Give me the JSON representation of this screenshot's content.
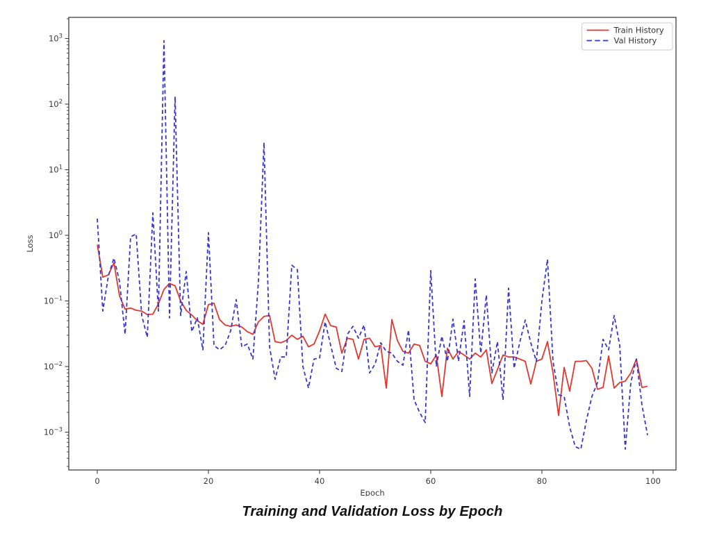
{
  "page": {
    "background": "#ffffff",
    "caption": "Training and Validation Loss by Epoch"
  },
  "chart_data": {
    "type": "line",
    "title": "",
    "xlabel": "Epoch",
    "ylabel": "Loss",
    "x_scale": "linear",
    "y_scale": "log",
    "grid": false,
    "xlim": [
      -5,
      104
    ],
    "ylim": [
      0.00027,
      2000
    ],
    "x_ticks": [
      0,
      20,
      40,
      60,
      80,
      100
    ],
    "y_tick_exponents": [
      3,
      2,
      1,
      0,
      -1,
      -2,
      -3
    ],
    "legend": {
      "position": "upper right",
      "entries": [
        "Train History",
        "Val History"
      ]
    },
    "axis_color": "#3c3c3c",
    "tick_label_color": "#3a3a3a",
    "x": [
      0,
      1,
      2,
      3,
      4,
      5,
      6,
      7,
      8,
      9,
      10,
      11,
      12,
      13,
      14,
      15,
      16,
      17,
      18,
      19,
      20,
      21,
      22,
      23,
      24,
      25,
      26,
      27,
      28,
      29,
      30,
      31,
      32,
      33,
      34,
      35,
      36,
      37,
      38,
      39,
      40,
      41,
      42,
      43,
      44,
      45,
      46,
      47,
      48,
      49,
      50,
      51,
      52,
      53,
      54,
      55,
      56,
      57,
      58,
      59,
      60,
      61,
      62,
      63,
      64,
      65,
      66,
      67,
      68,
      69,
      70,
      71,
      72,
      73,
      74,
      75,
      76,
      77,
      78,
      79,
      80,
      81,
      82,
      83,
      84,
      85,
      86,
      87,
      88,
      89,
      90,
      91,
      92,
      93,
      94,
      95,
      96,
      97,
      98,
      99
    ],
    "series": [
      {
        "name": "Train History",
        "color": "#e8332b",
        "style": "solid",
        "values": [
          0.72,
          0.23,
          0.25,
          0.38,
          0.12,
          0.075,
          0.078,
          0.072,
          0.07,
          0.062,
          0.063,
          0.09,
          0.15,
          0.185,
          0.17,
          0.1,
          0.072,
          0.061,
          0.05,
          0.044,
          0.088,
          0.092,
          0.052,
          0.043,
          0.041,
          0.043,
          0.04,
          0.034,
          0.031,
          0.048,
          0.058,
          0.06,
          0.024,
          0.023,
          0.025,
          0.03,
          0.026,
          0.029,
          0.02,
          0.022,
          0.035,
          0.063,
          0.042,
          0.04,
          0.016,
          0.027,
          0.026,
          0.013,
          0.026,
          0.027,
          0.02,
          0.021,
          0.0047,
          0.052,
          0.025,
          0.017,
          0.016,
          0.022,
          0.021,
          0.012,
          0.011,
          0.015,
          0.0035,
          0.019,
          0.013,
          0.017,
          0.015,
          0.013,
          0.016,
          0.014,
          0.018,
          0.0055,
          0.009,
          0.015,
          0.014,
          0.014,
          0.013,
          0.012,
          0.0054,
          0.012,
          0.013,
          0.024,
          0.008,
          0.0018,
          0.0097,
          0.0042,
          0.012,
          0.012,
          0.0123,
          0.0094,
          0.0045,
          0.0048,
          0.0145,
          0.0047,
          0.0057,
          0.006,
          0.008,
          0.013,
          0.0048,
          0.005
        ]
      },
      {
        "name": "Val History",
        "color": "#3434d4",
        "style": "dashed",
        "values": [
          1.8,
          0.07,
          0.24,
          0.45,
          0.2,
          0.031,
          0.95,
          1.05,
          0.06,
          0.028,
          2.2,
          0.07,
          930,
          0.055,
          130,
          0.06,
          0.28,
          0.034,
          0.055,
          0.018,
          1.1,
          0.021,
          0.018,
          0.021,
          0.035,
          0.105,
          0.02,
          0.022,
          0.013,
          0.2,
          26,
          0.02,
          0.0064,
          0.014,
          0.014,
          0.35,
          0.3,
          0.01,
          0.0047,
          0.013,
          0.0135,
          0.048,
          0.021,
          0.0094,
          0.0084,
          0.031,
          0.041,
          0.027,
          0.043,
          0.008,
          0.011,
          0.023,
          0.017,
          0.016,
          0.012,
          0.0105,
          0.036,
          0.0031,
          0.002,
          0.0014,
          0.29,
          0.01,
          0.029,
          0.012,
          0.053,
          0.012,
          0.05,
          0.0035,
          0.217,
          0.016,
          0.123,
          0.008,
          0.024,
          0.0031,
          0.157,
          0.0094,
          0.023,
          0.051,
          0.023,
          0.012,
          0.1,
          0.43,
          0.012,
          0.0037,
          0.0035,
          0.0012,
          0.0006,
          0.00055,
          0.0015,
          0.0035,
          0.0057,
          0.026,
          0.018,
          0.06,
          0.021,
          0.00055,
          0.0057,
          0.013,
          0.0026,
          0.0009
        ]
      }
    ]
  }
}
